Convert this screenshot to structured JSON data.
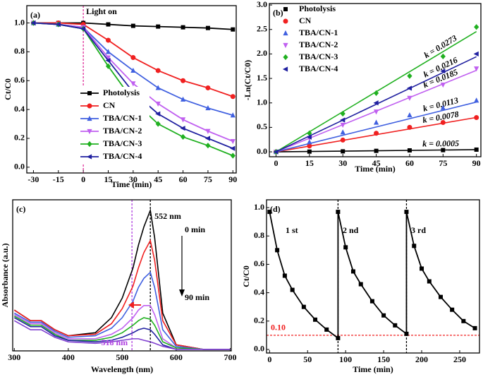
{
  "chart_data": [
    {
      "type": "line",
      "panel": "(a)",
      "xlabel": "Time (min)",
      "ylabel": "Ct/C0",
      "x": [
        -30,
        -15,
        0,
        15,
        30,
        45,
        60,
        75,
        90
      ],
      "xlim": [
        -34,
        92
      ],
      "xticks": [
        -30,
        -15,
        0,
        15,
        30,
        45,
        60,
        75,
        90
      ],
      "ylim": [
        -0.04,
        1.12
      ],
      "yticks": [
        {
          "value": 0,
          "label": "0.0"
        },
        0.2,
        0.4,
        0.6,
        0.8,
        {
          "value": 1,
          "label": "1.0"
        }
      ],
      "legend": "lower center",
      "vlines": [
        {
          "value": 0,
          "label": "Light on",
          "color": "#e0309a"
        }
      ],
      "series": [
        {
          "name": "Photolysis",
          "color": "#000000",
          "marker": "square",
          "values": [
            1,
            1,
            1,
            0.99,
            0.98,
            0.975,
            0.97,
            0.965,
            0.955
          ]
        },
        {
          "name": "CN",
          "color": "#f02020",
          "marker": "circle",
          "values": [
            1,
            1,
            0.99,
            0.88,
            0.76,
            0.67,
            0.6,
            0.55,
            0.49
          ]
        },
        {
          "name": "TBA/CN-1",
          "color": "#4060e0",
          "marker": "up",
          "values": [
            1,
            0.99,
            0.97,
            0.8,
            0.67,
            0.55,
            0.47,
            0.41,
            0.36
          ]
        },
        {
          "name": "TBA/CN-2",
          "color": "#c060f0",
          "marker": "down",
          "values": [
            1,
            0.99,
            0.97,
            0.76,
            0.58,
            0.44,
            0.33,
            0.25,
            0.18
          ]
        },
        {
          "name": "TBA/CN-3",
          "color": "#20b020",
          "marker": "diamond",
          "values": [
            1,
            0.99,
            0.96,
            0.7,
            0.46,
            0.3,
            0.21,
            0.15,
            0.08
          ]
        },
        {
          "name": "TBA/CN-4",
          "color": "#2020a0",
          "marker": "left",
          "values": [
            1,
            0.99,
            0.96,
            0.74,
            0.52,
            0.37,
            0.27,
            0.2,
            0.13
          ]
        }
      ]
    },
    {
      "type": "scatter",
      "panel": "(b)",
      "xlabel": "Time (min)",
      "ylabel": "-Ln(Ct/C0)",
      "x": [
        0,
        15,
        30,
        45,
        60,
        75,
        90
      ],
      "xlim": [
        -3,
        92
      ],
      "xticks": [
        0,
        15,
        30,
        45,
        60,
        75,
        90
      ],
      "ylim": [
        -0.1,
        3.03
      ],
      "yticks": [
        {
          "value": 0,
          "label": "0.0"
        },
        0.5,
        {
          "value": 1,
          "label": "1.0"
        },
        1.5,
        {
          "value": 2,
          "label": "2.0"
        },
        2.5,
        {
          "value": 3,
          "label": "3.0"
        }
      ],
      "legend": "upper left",
      "series": [
        {
          "name": "Photolysis",
          "color": "#000000",
          "marker": "square",
          "k": 0.0005,
          "k_label": "k = 0.0005",
          "values": [
            0,
            0.005,
            0.01,
            0.02,
            0.03,
            0.035,
            0.045
          ]
        },
        {
          "name": "CN",
          "color": "#f02020",
          "marker": "circle",
          "k": 0.0078,
          "k_label": "k = 0.0078",
          "values": [
            0,
            0.12,
            0.24,
            0.38,
            0.5,
            0.6,
            0.7
          ]
        },
        {
          "name": "TBA/CN-1",
          "color": "#4060e0",
          "marker": "up",
          "k": 0.0113,
          "k_label": "k = 0.0113",
          "values": [
            0,
            0.2,
            0.4,
            0.6,
            0.75,
            0.9,
            1.05
          ]
        },
        {
          "name": "TBA/CN-2",
          "color": "#c060f0",
          "marker": "down",
          "k": 0.0185,
          "k_label": "k = 0.0185",
          "values": [
            0,
            0.28,
            0.55,
            0.82,
            1.1,
            1.37,
            1.7
          ]
        },
        {
          "name": "TBA/CN-3",
          "color": "#20b020",
          "marker": "diamond",
          "k": 0.0273,
          "k_label": "k = 0.0273",
          "values": [
            0,
            0.38,
            0.78,
            1.2,
            1.55,
            1.95,
            2.55
          ]
        },
        {
          "name": "TBA/CN-4",
          "color": "#2020a0",
          "marker": "left",
          "k": 0.0216,
          "k_label": "k = 0.0216",
          "values": [
            0,
            0.3,
            0.65,
            1.0,
            1.3,
            1.65,
            2.0
          ]
        }
      ]
    },
    {
      "type": "line",
      "panel": "(c)",
      "xlabel": "Wavelength (nm)",
      "ylabel": "Absorbance (a.u.)",
      "x": [
        300,
        330,
        350,
        375,
        400,
        450,
        480,
        500,
        520,
        530,
        540,
        552,
        560,
        575,
        600,
        650,
        700
      ],
      "xlim": [
        297,
        702
      ],
      "xticks": [
        300,
        400,
        500,
        600,
        700
      ],
      "ylim": [
        0,
        1
      ],
      "vlines": [
        {
          "value": 552,
          "label": "552 nm",
          "color": "#000000"
        },
        {
          "value": 518,
          "label": "518 nm",
          "color": "#b040e0"
        }
      ],
      "annotations": [
        "0 min",
        "90 min"
      ],
      "series": [
        {
          "color": "#000000",
          "values": [
            0.27,
            0.2,
            0.2,
            0.14,
            0.1,
            0.12,
            0.22,
            0.35,
            0.55,
            0.7,
            0.82,
            0.93,
            0.75,
            0.25,
            0.04,
            0.01,
            0.01
          ]
        },
        {
          "color": "#f02020",
          "values": [
            0.27,
            0.2,
            0.2,
            0.14,
            0.1,
            0.11,
            0.18,
            0.28,
            0.43,
            0.55,
            0.65,
            0.73,
            0.6,
            0.2,
            0.04,
            0.01,
            0.01
          ]
        },
        {
          "color": "#4060e0",
          "values": [
            0.25,
            0.19,
            0.19,
            0.13,
            0.09,
            0.1,
            0.15,
            0.22,
            0.33,
            0.42,
            0.48,
            0.52,
            0.42,
            0.14,
            0.03,
            0.01,
            0.01
          ]
        },
        {
          "color": "#c060f0",
          "values": [
            0.24,
            0.18,
            0.18,
            0.12,
            0.08,
            0.08,
            0.11,
            0.15,
            0.22,
            0.27,
            0.3,
            0.3,
            0.24,
            0.08,
            0.02,
            0.01,
            0.01
          ]
        },
        {
          "color": "#20b020",
          "values": [
            0.23,
            0.17,
            0.17,
            0.11,
            0.07,
            0.07,
            0.09,
            0.12,
            0.17,
            0.2,
            0.22,
            0.21,
            0.17,
            0.06,
            0.02,
            0.01,
            0.01
          ]
        },
        {
          "color": "#2020a0",
          "values": [
            0.22,
            0.16,
            0.16,
            0.1,
            0.07,
            0.06,
            0.07,
            0.09,
            0.12,
            0.14,
            0.15,
            0.14,
            0.11,
            0.04,
            0.01,
            0.01,
            0.01
          ]
        },
        {
          "color": "#8040d0",
          "values": [
            0.2,
            0.14,
            0.14,
            0.09,
            0.06,
            0.05,
            0.06,
            0.07,
            0.08,
            0.08,
            0.07,
            0.06,
            0.05,
            0.03,
            0.01,
            0.01,
            0.01
          ]
        }
      ]
    },
    {
      "type": "line",
      "panel": "(d)",
      "xlabel": "Time (min)",
      "ylabel": "Ct/C0",
      "x": [
        0,
        10,
        20,
        30,
        45,
        60,
        75,
        90,
        90,
        100,
        110,
        120,
        135,
        150,
        165,
        180,
        180,
        190,
        200,
        210,
        225,
        240,
        255,
        270
      ],
      "xlim": [
        -4,
        276
      ],
      "xticks": [
        0,
        50,
        100,
        150,
        200,
        250
      ],
      "ylim": [
        -0.025,
        1.055
      ],
      "yticks": [
        {
          "value": 0,
          "label": "0.0"
        },
        0.2,
        0.4,
        0.6,
        0.8,
        {
          "value": 1,
          "label": "1.0"
        }
      ],
      "vlines": [
        {
          "value": 90,
          "color": "#000000"
        },
        {
          "value": 180,
          "color": "#000000"
        }
      ],
      "hlines": [
        {
          "value": 0.1,
          "label": "0.10",
          "color": "#f02020"
        }
      ],
      "annotations": [
        "1 st",
        "2 nd",
        "3 rd"
      ],
      "series": [
        {
          "color": "#000000",
          "marker": "square",
          "values": [
            0.97,
            0.7,
            0.52,
            0.42,
            0.3,
            0.21,
            0.14,
            0.08,
            0.97,
            0.72,
            0.55,
            0.46,
            0.34,
            0.24,
            0.17,
            0.11,
            0.97,
            0.73,
            0.57,
            0.48,
            0.37,
            0.28,
            0.2,
            0.15
          ]
        }
      ]
    }
  ]
}
